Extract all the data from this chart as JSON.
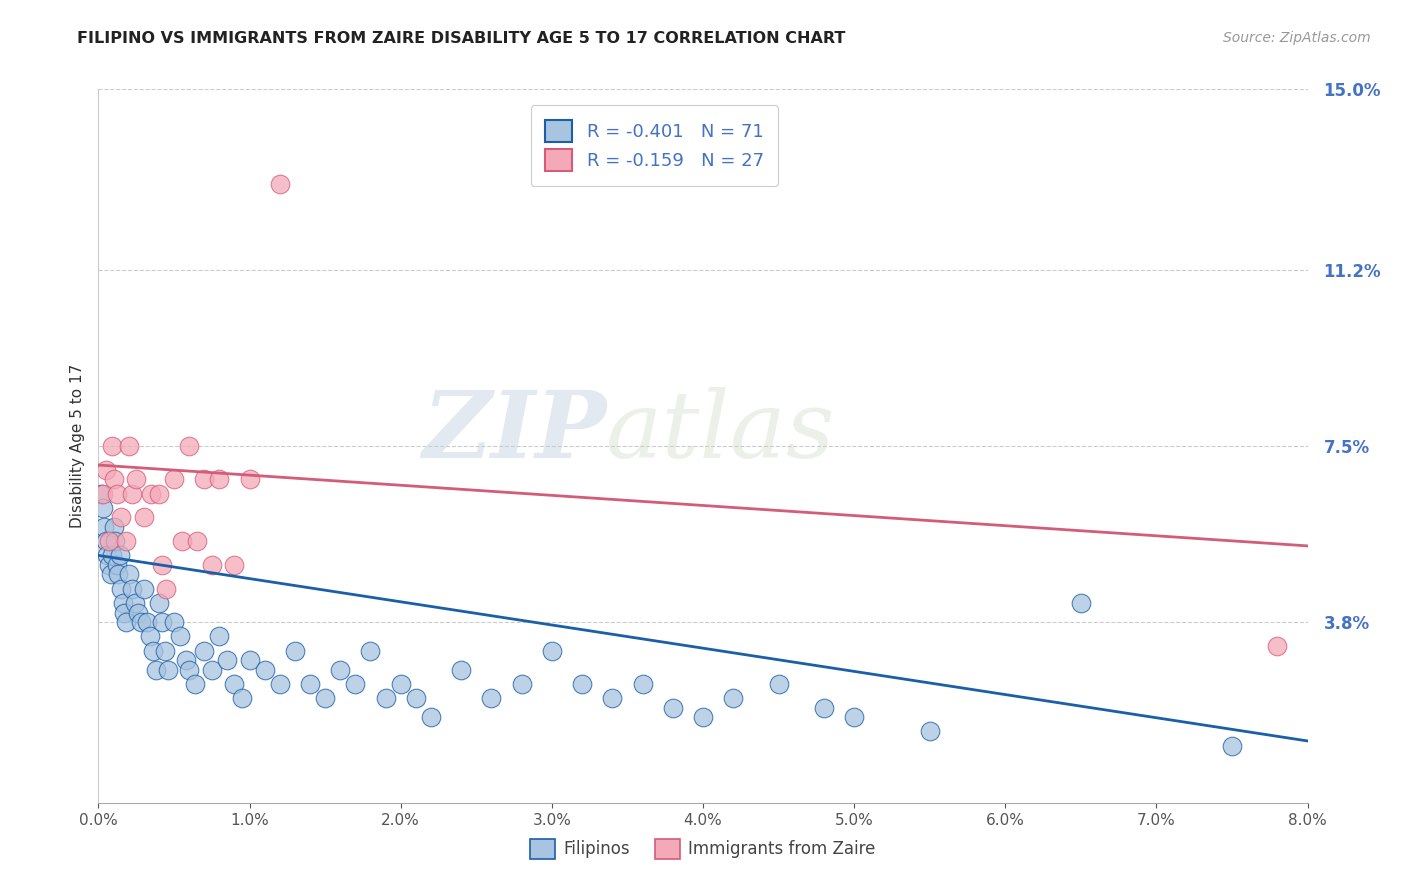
{
  "title": "FILIPINO VS IMMIGRANTS FROM ZAIRE DISABILITY AGE 5 TO 17 CORRELATION CHART",
  "source": "Source: ZipAtlas.com",
  "ylabel": "Disability Age 5 to 17",
  "xlim": [
    0.0,
    0.08
  ],
  "ylim": [
    0.0,
    0.15
  ],
  "xticks": [
    0.0,
    0.01,
    0.02,
    0.03,
    0.04,
    0.05,
    0.06,
    0.07,
    0.08
  ],
  "yticks_right": [
    0.0,
    0.038,
    0.075,
    0.112,
    0.15
  ],
  "ytick_labels_right": [
    "",
    "3.8%",
    "7.5%",
    "11.2%",
    "15.0%"
  ],
  "legend_r1": "-0.401",
  "legend_n1": "71",
  "legend_r2": "-0.159",
  "legend_n2": "27",
  "color_filipino": "#a8c4e0",
  "color_zaire": "#f4a9b8",
  "color_line_filipino": "#1a5fa8",
  "color_line_zaire": "#d45c78",
  "color_title": "#222222",
  "color_source": "#999999",
  "color_axis_right": "#4472c4",
  "watermark_zip": "ZIP",
  "watermark_atlas": "atlas",
  "filipinos_x": [
    0.0002,
    0.0003,
    0.0004,
    0.0005,
    0.0006,
    0.0007,
    0.0008,
    0.0009,
    0.001,
    0.0011,
    0.0012,
    0.0013,
    0.0014,
    0.0015,
    0.0016,
    0.0017,
    0.0018,
    0.002,
    0.0022,
    0.0024,
    0.0026,
    0.0028,
    0.003,
    0.0032,
    0.0034,
    0.0036,
    0.0038,
    0.004,
    0.0042,
    0.0044,
    0.0046,
    0.005,
    0.0054,
    0.0058,
    0.006,
    0.0064,
    0.007,
    0.0075,
    0.008,
    0.0085,
    0.009,
    0.0095,
    0.01,
    0.011,
    0.012,
    0.013,
    0.014,
    0.015,
    0.016,
    0.017,
    0.018,
    0.019,
    0.02,
    0.021,
    0.022,
    0.024,
    0.026,
    0.028,
    0.03,
    0.032,
    0.034,
    0.036,
    0.038,
    0.04,
    0.042,
    0.045,
    0.048,
    0.05,
    0.055,
    0.065,
    0.075
  ],
  "filipinos_y": [
    0.065,
    0.062,
    0.058,
    0.055,
    0.052,
    0.05,
    0.048,
    0.052,
    0.058,
    0.055,
    0.05,
    0.048,
    0.052,
    0.045,
    0.042,
    0.04,
    0.038,
    0.048,
    0.045,
    0.042,
    0.04,
    0.038,
    0.045,
    0.038,
    0.035,
    0.032,
    0.028,
    0.042,
    0.038,
    0.032,
    0.028,
    0.038,
    0.035,
    0.03,
    0.028,
    0.025,
    0.032,
    0.028,
    0.035,
    0.03,
    0.025,
    0.022,
    0.03,
    0.028,
    0.025,
    0.032,
    0.025,
    0.022,
    0.028,
    0.025,
    0.032,
    0.022,
    0.025,
    0.022,
    0.018,
    0.028,
    0.022,
    0.025,
    0.032,
    0.025,
    0.022,
    0.025,
    0.02,
    0.018,
    0.022,
    0.025,
    0.02,
    0.018,
    0.015,
    0.042,
    0.012
  ],
  "zaire_x": [
    0.0003,
    0.0005,
    0.0007,
    0.0009,
    0.001,
    0.0012,
    0.0015,
    0.0018,
    0.002,
    0.0022,
    0.0025,
    0.003,
    0.0035,
    0.004,
    0.0042,
    0.0045,
    0.005,
    0.0055,
    0.006,
    0.0065,
    0.007,
    0.0075,
    0.008,
    0.009,
    0.01,
    0.012,
    0.078
  ],
  "zaire_y": [
    0.065,
    0.07,
    0.055,
    0.075,
    0.068,
    0.065,
    0.06,
    0.055,
    0.075,
    0.065,
    0.068,
    0.06,
    0.065,
    0.065,
    0.05,
    0.045,
    0.068,
    0.055,
    0.075,
    0.055,
    0.068,
    0.05,
    0.068,
    0.05,
    0.068,
    0.13,
    0.033
  ],
  "trend_filipino_x0": 0.0,
  "trend_filipino_y0": 0.052,
  "trend_filipino_x1": 0.08,
  "trend_filipino_y1": 0.013,
  "trend_zaire_x0": 0.0,
  "trend_zaire_y0": 0.071,
  "trend_zaire_x1": 0.08,
  "trend_zaire_y1": 0.054
}
